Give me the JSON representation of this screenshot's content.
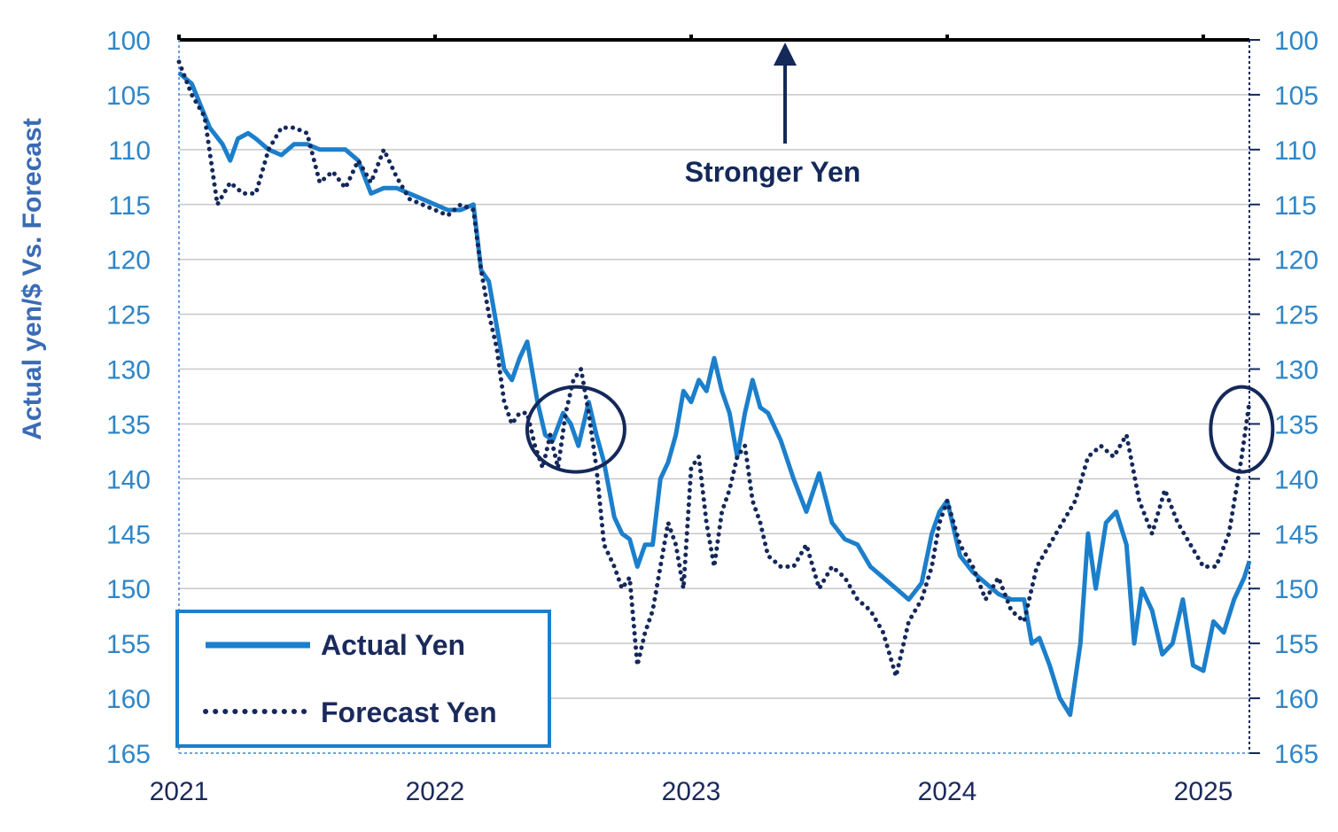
{
  "colors": {
    "actual": "#1C7FCB",
    "forecast": "#14285A",
    "grid": "#C8C8C8",
    "left_ticks": "#2E86C8",
    "ylabel": "#3A6BB5",
    "axis_top": "#000000"
  },
  "chart_data": {
    "type": "line",
    "ylabel": "Actual yen/$ Vs. Forecast",
    "xlabel": "",
    "y_inverted": true,
    "ylim": [
      100,
      165
    ],
    "y_ticks": [
      100,
      105,
      110,
      115,
      120,
      125,
      130,
      135,
      140,
      145,
      150,
      155,
      160,
      165
    ],
    "x_ticks": [
      "2021",
      "2022",
      "2023",
      "2024",
      "2025"
    ],
    "xlim": [
      2021.0,
      2025.18
    ],
    "grid": true,
    "legend_placement": "bottom-left",
    "annotation": {
      "text": "Stronger Yen",
      "x": 2023.37,
      "arrow": "up"
    },
    "highlight_circles": [
      {
        "x": 2022.55,
        "y": 135.5
      },
      {
        "x": 2025.15,
        "y": 135.5
      }
    ],
    "series": [
      {
        "name": "Actual Yen",
        "style": "solid",
        "x": [
          2021.0,
          2021.05,
          2021.12,
          2021.17,
          2021.2,
          2021.23,
          2021.27,
          2021.3,
          2021.35,
          2021.4,
          2021.45,
          2021.5,
          2021.55,
          2021.6,
          2021.65,
          2021.7,
          2021.75,
          2021.8,
          2021.85,
          2021.9,
          2021.95,
          2022.0,
          2022.05,
          2022.1,
          2022.15,
          2022.18,
          2022.21,
          2022.24,
          2022.27,
          2022.3,
          2022.33,
          2022.36,
          2022.4,
          2022.43,
          2022.46,
          2022.5,
          2022.53,
          2022.56,
          2022.6,
          2022.63,
          2022.66,
          2022.7,
          2022.73,
          2022.76,
          2022.79,
          2022.82,
          2022.85,
          2022.88,
          2022.91,
          2022.94,
          2022.97,
          2023.0,
          2023.03,
          2023.06,
          2023.09,
          2023.12,
          2023.15,
          2023.18,
          2023.21,
          2023.24,
          2023.27,
          2023.3,
          2023.35,
          2023.4,
          2023.45,
          2023.5,
          2023.55,
          2023.6,
          2023.65,
          2023.7,
          2023.75,
          2023.8,
          2023.85,
          2023.9,
          2023.94,
          2023.97,
          2024.0,
          2024.05,
          2024.1,
          2024.15,
          2024.2,
          2024.25,
          2024.3,
          2024.33,
          2024.36,
          2024.4,
          2024.44,
          2024.48,
          2024.52,
          2024.55,
          2024.58,
          2024.62,
          2024.66,
          2024.7,
          2024.73,
          2024.76,
          2024.8,
          2024.84,
          2024.88,
          2024.92,
          2024.96,
          2025.0,
          2025.04,
          2025.08,
          2025.12,
          2025.16,
          2025.18
        ],
        "y": [
          103,
          104,
          108,
          109.5,
          111,
          109,
          108.5,
          109,
          110,
          110.5,
          109.5,
          109.5,
          110,
          110,
          110,
          111,
          114,
          113.5,
          113.5,
          114,
          114.5,
          115,
          115.5,
          115.5,
          115,
          121,
          122,
          126,
          130,
          131,
          129,
          127.5,
          133,
          136,
          136.5,
          134,
          135,
          137,
          133,
          136,
          138.5,
          143.5,
          145,
          145.5,
          148,
          146,
          146,
          140,
          138.5,
          136,
          132,
          133,
          131,
          132,
          129,
          132,
          134,
          138,
          134,
          131,
          133.5,
          134,
          136.5,
          140,
          143,
          139.5,
          144,
          145.5,
          146,
          148,
          149,
          150,
          151,
          149.5,
          145,
          143,
          142,
          147,
          148.5,
          149.5,
          150.5,
          151,
          151,
          155,
          154.5,
          157,
          160,
          161.5,
          155,
          145,
          150,
          144,
          143,
          146,
          155,
          150,
          152,
          156,
          155,
          151,
          157,
          157.5,
          153,
          154,
          151,
          149,
          147.5
        ]
      },
      {
        "name": "Forecast Yen",
        "style": "dotted",
        "x": [
          2021.0,
          2021.05,
          2021.1,
          2021.15,
          2021.2,
          2021.25,
          2021.3,
          2021.35,
          2021.4,
          2021.45,
          2021.5,
          2021.55,
          2021.6,
          2021.65,
          2021.7,
          2021.75,
          2021.8,
          2021.85,
          2021.9,
          2021.95,
          2022.0,
          2022.05,
          2022.1,
          2022.15,
          2022.18,
          2022.21,
          2022.24,
          2022.27,
          2022.3,
          2022.33,
          2022.36,
          2022.39,
          2022.42,
          2022.45,
          2022.48,
          2022.51,
          2022.54,
          2022.57,
          2022.6,
          2022.63,
          2022.66,
          2022.7,
          2022.73,
          2022.76,
          2022.79,
          2022.82,
          2022.85,
          2022.88,
          2022.91,
          2022.94,
          2022.97,
          2023.0,
          2023.03,
          2023.06,
          2023.09,
          2023.12,
          2023.15,
          2023.18,
          2023.21,
          2023.24,
          2023.27,
          2023.3,
          2023.35,
          2023.4,
          2023.45,
          2023.5,
          2023.55,
          2023.6,
          2023.65,
          2023.7,
          2023.75,
          2023.8,
          2023.85,
          2023.9,
          2023.94,
          2023.97,
          2024.0,
          2024.05,
          2024.1,
          2024.15,
          2024.2,
          2024.25,
          2024.3,
          2024.35,
          2024.4,
          2024.45,
          2024.5,
          2024.55,
          2024.6,
          2024.65,
          2024.7,
          2024.75,
          2024.8,
          2024.85,
          2024.9,
          2024.95,
          2025.0,
          2025.05,
          2025.1,
          2025.15,
          2025.18
        ],
        "y": [
          102,
          105,
          107,
          115,
          113,
          114,
          114,
          110,
          108,
          108,
          108.5,
          113,
          112,
          113.5,
          111,
          113,
          110,
          112.5,
          114.5,
          115,
          115.5,
          116,
          115,
          115.5,
          121,
          125,
          128,
          133,
          135,
          134,
          134,
          137,
          139,
          136,
          139,
          134,
          131,
          130,
          134,
          139,
          146,
          148,
          150,
          149,
          157,
          154,
          152,
          148,
          144,
          146,
          150,
          139,
          138,
          144,
          148,
          143,
          141,
          138,
          137,
          142,
          144,
          147,
          148,
          148,
          146,
          150,
          148,
          149,
          151,
          152,
          154,
          158,
          153,
          151,
          148,
          144,
          142,
          146,
          148,
          151,
          149,
          152,
          153,
          148,
          146,
          144,
          142,
          138,
          137,
          138,
          136,
          142,
          145,
          141,
          144,
          146,
          148,
          148,
          145,
          138,
          133
        ]
      }
    ]
  }
}
